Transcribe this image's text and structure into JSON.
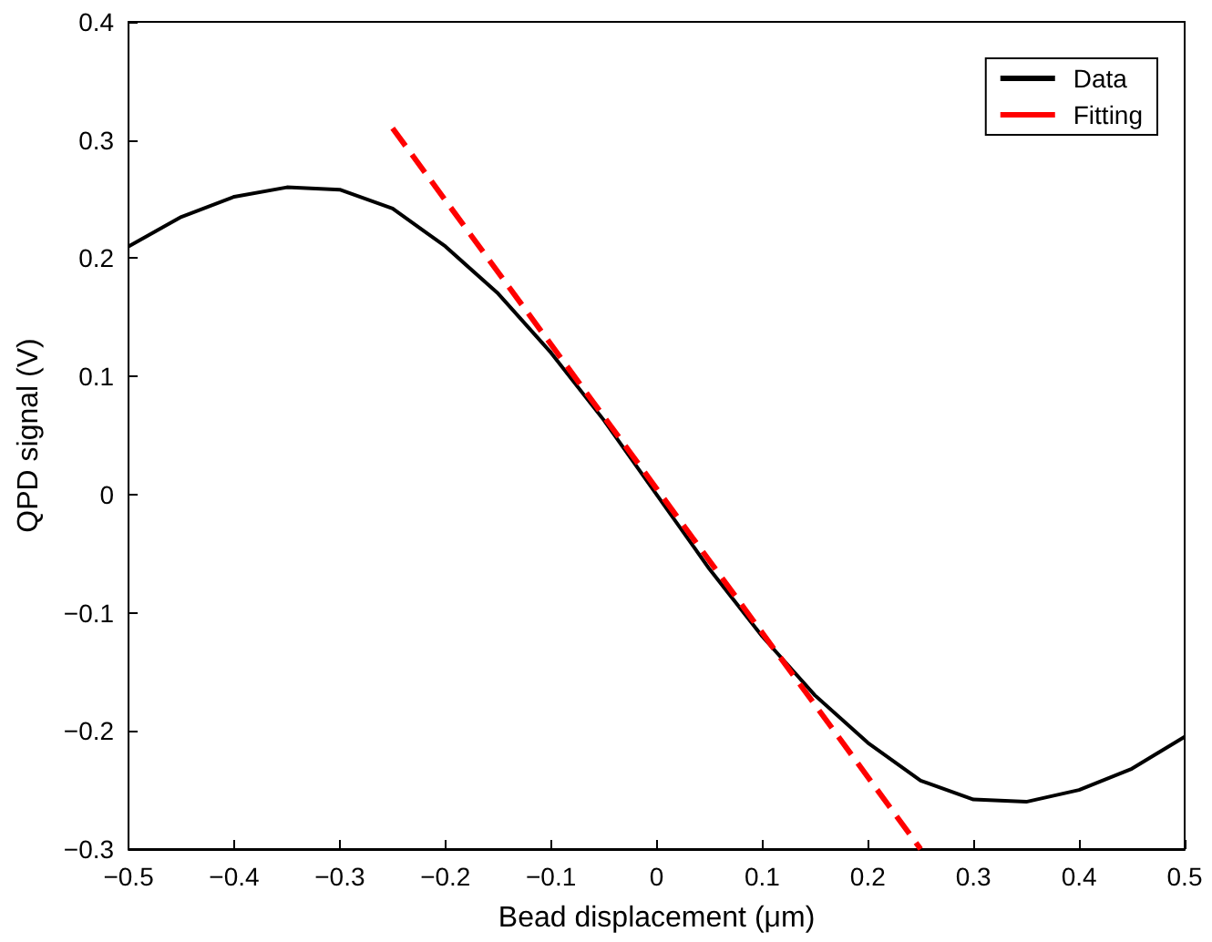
{
  "chart_data": {
    "type": "line",
    "xlabel": "Bead displacement (μm)",
    "ylabel": "QPD signal (V)",
    "xlim": [
      -0.5,
      0.5
    ],
    "xticks": [
      -0.5,
      -0.4,
      -0.3,
      -0.2,
      -0.1,
      0,
      0.1,
      0.2,
      0.3,
      0.4,
      0.5
    ],
    "ylim": [
      -0.3,
      0.4
    ],
    "yticks": [
      -0.3,
      -0.2,
      -0.1,
      0,
      0.1,
      0.2,
      0.3,
      0.4
    ],
    "grid": false,
    "legend": "top right",
    "marker": "none",
    "series": [
      {
        "name": "Data",
        "color": "#000000",
        "line_style": "solid",
        "x": [
          -0.5,
          -0.45,
          -0.4,
          -0.35,
          -0.3,
          -0.25,
          -0.2,
          -0.15,
          -0.1,
          -0.05,
          0,
          0.05,
          0.1,
          0.15,
          0.2,
          0.25,
          0.3,
          0.35,
          0.4,
          0.45,
          0.5
        ],
        "values": [
          0.21,
          0.235,
          0.252,
          0.26,
          0.258,
          0.242,
          0.21,
          0.17,
          0.12,
          0.063,
          0,
          -0.063,
          -0.12,
          -0.17,
          -0.21,
          -0.242,
          -0.258,
          -0.26,
          -0.25,
          -0.232,
          -0.205
        ]
      },
      {
        "name": "Fitting",
        "color": "#ff0000",
        "line_style": "dashed",
        "x": [
          -0.25,
          0.25
        ],
        "values": [
          0.31,
          -0.3
        ]
      }
    ]
  }
}
